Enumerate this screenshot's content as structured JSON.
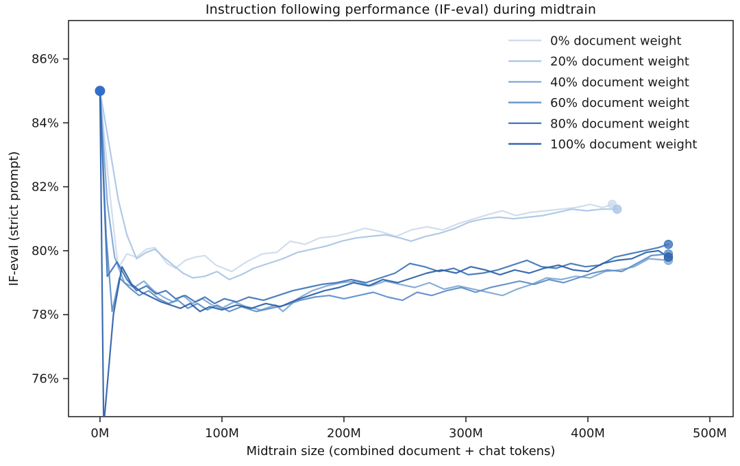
{
  "figure": {
    "background": "#ffffff"
  },
  "chart_data": {
    "type": "line",
    "title": "Instruction following performance (IF-eval) during midtrain",
    "xlabel": "Midtrain size (combined document + chat tokens)",
    "ylabel": "IF-eval (strict prompt)",
    "x_unit": "millions of tokens",
    "y_unit": "percent",
    "xlim": [
      -25.8,
      519.1
    ],
    "ylim": [
      74.81,
      87.2
    ],
    "grid": false,
    "legend_position": "upper right",
    "axis_color": "#262626",
    "tick_label_color": "#1a1a1a",
    "start_marker_color": "#2e6ac7",
    "x_ticks": [
      {
        "label": "0M",
        "value": 0
      },
      {
        "label": "100M",
        "value": 100
      },
      {
        "label": "200M",
        "value": 200
      },
      {
        "label": "300M",
        "value": 300
      },
      {
        "label": "400M",
        "value": 400
      },
      {
        "label": "500M",
        "value": 500
      }
    ],
    "y_ticks": [
      {
        "label": "76%",
        "value": 76
      },
      {
        "label": "78%",
        "value": 78
      },
      {
        "label": "80%",
        "value": 80
      },
      {
        "label": "82%",
        "value": 82
      },
      {
        "label": "84%",
        "value": 84
      },
      {
        "label": "86%",
        "value": 86
      }
    ],
    "series": [
      {
        "name": "0% document weight",
        "color": "#ccdaed",
        "points": [
          [
            0,
            85.0
          ],
          [
            8,
            81.8
          ],
          [
            15,
            79.45
          ],
          [
            22,
            79.9
          ],
          [
            30,
            79.8
          ],
          [
            38,
            80.05
          ],
          [
            45,
            80.1
          ],
          [
            55,
            79.6
          ],
          [
            62,
            79.45
          ],
          [
            70,
            79.7
          ],
          [
            78,
            79.8
          ],
          [
            86,
            79.85
          ],
          [
            95,
            79.55
          ],
          [
            108,
            79.35
          ],
          [
            120,
            79.65
          ],
          [
            133,
            79.9
          ],
          [
            145,
            79.95
          ],
          [
            156,
            80.3
          ],
          [
            168,
            80.2
          ],
          [
            180,
            80.4
          ],
          [
            192,
            80.45
          ],
          [
            204,
            80.55
          ],
          [
            217,
            80.7
          ],
          [
            230,
            80.6
          ],
          [
            243,
            80.45
          ],
          [
            255,
            80.65
          ],
          [
            268,
            80.75
          ],
          [
            281,
            80.65
          ],
          [
            294,
            80.85
          ],
          [
            307,
            81.0
          ],
          [
            320,
            81.15
          ],
          [
            330,
            81.25
          ],
          [
            341,
            81.1
          ],
          [
            353,
            81.2
          ],
          [
            365,
            81.25
          ],
          [
            378,
            81.3
          ],
          [
            390,
            81.35
          ],
          [
            402,
            81.45
          ],
          [
            412,
            81.35
          ],
          [
            420,
            81.45
          ]
        ]
      },
      {
        "name": "20% document weight",
        "color": "#a9c4e5",
        "points": [
          [
            0,
            85.0
          ],
          [
            8,
            83.2
          ],
          [
            15,
            81.6
          ],
          [
            22,
            80.5
          ],
          [
            30,
            79.75
          ],
          [
            38,
            79.95
          ],
          [
            45,
            80.05
          ],
          [
            52,
            79.8
          ],
          [
            60,
            79.55
          ],
          [
            68,
            79.3
          ],
          [
            76,
            79.15
          ],
          [
            86,
            79.2
          ],
          [
            96,
            79.35
          ],
          [
            106,
            79.1
          ],
          [
            116,
            79.25
          ],
          [
            126,
            79.45
          ],
          [
            138,
            79.6
          ],
          [
            150,
            79.75
          ],
          [
            162,
            79.95
          ],
          [
            174,
            80.05
          ],
          [
            186,
            80.15
          ],
          [
            198,
            80.3
          ],
          [
            210,
            80.4
          ],
          [
            222,
            80.45
          ],
          [
            234,
            80.5
          ],
          [
            246,
            80.4
          ],
          [
            255,
            80.3
          ],
          [
            267,
            80.45
          ],
          [
            279,
            80.55
          ],
          [
            291,
            80.7
          ],
          [
            303,
            80.9
          ],
          [
            315,
            81.0
          ],
          [
            327,
            81.05
          ],
          [
            339,
            81.0
          ],
          [
            351,
            81.05
          ],
          [
            363,
            81.1
          ],
          [
            375,
            81.2
          ],
          [
            387,
            81.3
          ],
          [
            399,
            81.25
          ],
          [
            411,
            81.3
          ],
          [
            424,
            81.3
          ]
        ]
      },
      {
        "name": "40% document weight",
        "color": "#7ea6d4",
        "points": [
          [
            0,
            85.0
          ],
          [
            6,
            81.5
          ],
          [
            12,
            79.8
          ],
          [
            20,
            79.0
          ],
          [
            28,
            78.85
          ],
          [
            36,
            79.05
          ],
          [
            44,
            78.75
          ],
          [
            52,
            78.55
          ],
          [
            60,
            78.4
          ],
          [
            68,
            78.6
          ],
          [
            76,
            78.35
          ],
          [
            84,
            78.5
          ],
          [
            92,
            78.3
          ],
          [
            100,
            78.2
          ],
          [
            110,
            78.4
          ],
          [
            120,
            78.25
          ],
          [
            132,
            78.15
          ],
          [
            144,
            78.3
          ],
          [
            150,
            78.1
          ],
          [
            162,
            78.5
          ],
          [
            174,
            78.75
          ],
          [
            186,
            78.9
          ],
          [
            198,
            79.0
          ],
          [
            210,
            79.05
          ],
          [
            222,
            78.9
          ],
          [
            234,
            79.05
          ],
          [
            246,
            78.95
          ],
          [
            258,
            78.85
          ],
          [
            270,
            79.0
          ],
          [
            282,
            78.8
          ],
          [
            294,
            78.9
          ],
          [
            306,
            78.8
          ],
          [
            318,
            78.7
          ],
          [
            330,
            78.6
          ],
          [
            342,
            78.8
          ],
          [
            354,
            78.95
          ],
          [
            366,
            79.15
          ],
          [
            378,
            79.1
          ],
          [
            390,
            79.2
          ],
          [
            402,
            79.15
          ],
          [
            414,
            79.35
          ],
          [
            426,
            79.4
          ],
          [
            438,
            79.5
          ],
          [
            450,
            79.75
          ],
          [
            466,
            79.7
          ]
        ]
      },
      {
        "name": "60% document weight",
        "color": "#5c8dc8",
        "points": [
          [
            0,
            85.0
          ],
          [
            5,
            80.5
          ],
          [
            10,
            78.1
          ],
          [
            16,
            79.15
          ],
          [
            24,
            78.85
          ],
          [
            32,
            78.6
          ],
          [
            40,
            78.75
          ],
          [
            48,
            78.5
          ],
          [
            56,
            78.35
          ],
          [
            64,
            78.45
          ],
          [
            72,
            78.2
          ],
          [
            80,
            78.35
          ],
          [
            88,
            78.15
          ],
          [
            96,
            78.3
          ],
          [
            106,
            78.1
          ],
          [
            116,
            78.25
          ],
          [
            128,
            78.1
          ],
          [
            140,
            78.2
          ],
          [
            152,
            78.3
          ],
          [
            164,
            78.45
          ],
          [
            176,
            78.55
          ],
          [
            188,
            78.6
          ],
          [
            200,
            78.5
          ],
          [
            212,
            78.6
          ],
          [
            224,
            78.7
          ],
          [
            236,
            78.55
          ],
          [
            248,
            78.45
          ],
          [
            260,
            78.7
          ],
          [
            272,
            78.6
          ],
          [
            284,
            78.75
          ],
          [
            296,
            78.85
          ],
          [
            308,
            78.7
          ],
          [
            320,
            78.85
          ],
          [
            332,
            78.95
          ],
          [
            344,
            79.05
          ],
          [
            356,
            78.95
          ],
          [
            368,
            79.1
          ],
          [
            380,
            79.0
          ],
          [
            392,
            79.15
          ],
          [
            404,
            79.3
          ],
          [
            416,
            79.4
          ],
          [
            428,
            79.35
          ],
          [
            440,
            79.6
          ],
          [
            452,
            79.85
          ],
          [
            466,
            79.9
          ]
        ]
      },
      {
        "name": "80% document weight",
        "color": "#3d74b8",
        "points": [
          [
            0,
            85.0
          ],
          [
            6,
            79.2
          ],
          [
            14,
            79.65
          ],
          [
            22,
            79.1
          ],
          [
            30,
            78.75
          ],
          [
            38,
            78.9
          ],
          [
            46,
            78.65
          ],
          [
            54,
            78.75
          ],
          [
            62,
            78.5
          ],
          [
            70,
            78.6
          ],
          [
            78,
            78.4
          ],
          [
            86,
            78.55
          ],
          [
            94,
            78.35
          ],
          [
            102,
            78.5
          ],
          [
            112,
            78.4
          ],
          [
            122,
            78.55
          ],
          [
            134,
            78.45
          ],
          [
            146,
            78.6
          ],
          [
            158,
            78.75
          ],
          [
            170,
            78.85
          ],
          [
            182,
            78.95
          ],
          [
            194,
            79.0
          ],
          [
            206,
            79.1
          ],
          [
            218,
            79.0
          ],
          [
            230,
            79.15
          ],
          [
            242,
            79.3
          ],
          [
            254,
            79.6
          ],
          [
            266,
            79.5
          ],
          [
            278,
            79.35
          ],
          [
            290,
            79.45
          ],
          [
            302,
            79.25
          ],
          [
            314,
            79.3
          ],
          [
            326,
            79.4
          ],
          [
            338,
            79.55
          ],
          [
            350,
            79.7
          ],
          [
            362,
            79.5
          ],
          [
            374,
            79.45
          ],
          [
            386,
            79.6
          ],
          [
            398,
            79.5
          ],
          [
            410,
            79.55
          ],
          [
            422,
            79.8
          ],
          [
            434,
            79.9
          ],
          [
            446,
            80.0
          ],
          [
            458,
            80.1
          ],
          [
            466,
            80.2
          ]
        ]
      },
      {
        "name": "100% document weight",
        "color": "#2a5fa8",
        "points": [
          [
            0,
            85.0
          ],
          [
            3,
            74.5
          ],
          [
            11,
            78.0
          ],
          [
            18,
            79.5
          ],
          [
            26,
            78.95
          ],
          [
            34,
            78.7
          ],
          [
            42,
            78.55
          ],
          [
            50,
            78.4
          ],
          [
            58,
            78.3
          ],
          [
            66,
            78.2
          ],
          [
            74,
            78.35
          ],
          [
            82,
            78.1
          ],
          [
            90,
            78.25
          ],
          [
            100,
            78.15
          ],
          [
            112,
            78.3
          ],
          [
            124,
            78.2
          ],
          [
            136,
            78.35
          ],
          [
            148,
            78.25
          ],
          [
            160,
            78.45
          ],
          [
            172,
            78.6
          ],
          [
            184,
            78.75
          ],
          [
            196,
            78.85
          ],
          [
            208,
            79.0
          ],
          [
            220,
            78.9
          ],
          [
            232,
            79.1
          ],
          [
            244,
            79.0
          ],
          [
            256,
            79.15
          ],
          [
            268,
            79.3
          ],
          [
            280,
            79.4
          ],
          [
            292,
            79.3
          ],
          [
            304,
            79.5
          ],
          [
            316,
            79.4
          ],
          [
            328,
            79.25
          ],
          [
            340,
            79.4
          ],
          [
            352,
            79.3
          ],
          [
            364,
            79.45
          ],
          [
            376,
            79.55
          ],
          [
            388,
            79.4
          ],
          [
            400,
            79.35
          ],
          [
            412,
            79.6
          ],
          [
            424,
            79.7
          ],
          [
            436,
            79.75
          ],
          [
            448,
            79.95
          ],
          [
            458,
            80.0
          ],
          [
            466,
            79.8
          ]
        ]
      }
    ],
    "legend": [
      {
        "label": "0% document weight"
      },
      {
        "label": "20% document weight"
      },
      {
        "label": "40% document weight"
      },
      {
        "label": "60% document weight"
      },
      {
        "label": "80% document weight"
      },
      {
        "label": "100% document weight"
      }
    ],
    "annotations": {
      "start_point": "All runs start at 85% with 0M midtrain tokens",
      "light_runs_end_x": 420,
      "dark_runs_end_x": 466
    }
  }
}
